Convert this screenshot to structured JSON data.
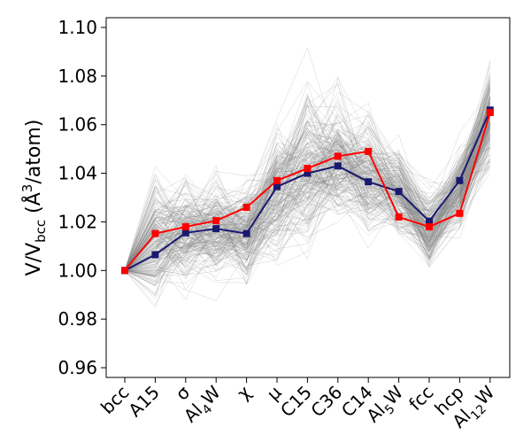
{
  "chart_data": {
    "type": "line",
    "title": "",
    "xlabel": "",
    "ylabel": {
      "base": "V/V",
      "sub": "bcc",
      "open": " (Å",
      "sup": "3",
      "close": "/atom)"
    },
    "categories": [
      {
        "base": "bcc",
        "sub": ""
      },
      {
        "base": "A15",
        "sub": ""
      },
      {
        "base": "σ",
        "sub": ""
      },
      {
        "base": "Al",
        "sub": "4",
        "tail": "W"
      },
      {
        "base": "χ",
        "sub": ""
      },
      {
        "base": "μ",
        "sub": ""
      },
      {
        "base": "C15",
        "sub": ""
      },
      {
        "base": "C36",
        "sub": ""
      },
      {
        "base": "C14",
        "sub": ""
      },
      {
        "base": "Al",
        "sub": "5",
        "tail": "W"
      },
      {
        "base": "fcc",
        "sub": ""
      },
      {
        "base": "hcp",
        "sub": ""
      },
      {
        "base": "Al",
        "sub": "12",
        "tail": "W"
      }
    ],
    "ylim": [
      0.956,
      1.104
    ],
    "yticks": [
      "0.96",
      "0.98",
      "1.00",
      "1.02",
      "1.04",
      "1.06",
      "1.08",
      "1.10"
    ],
    "series": [
      {
        "name": "navy",
        "color": "#191970",
        "marker": "square",
        "values": [
          1.0,
          1.0065,
          1.0155,
          1.0172,
          1.0152,
          1.0345,
          1.04,
          1.043,
          1.0365,
          1.0325,
          1.0203,
          1.037,
          1.066
        ]
      },
      {
        "name": "red",
        "color": "#ff0000",
        "marker": "square",
        "values": [
          1.0,
          1.0152,
          1.018,
          1.0205,
          1.026,
          1.037,
          1.042,
          1.047,
          1.049,
          1.022,
          1.018,
          1.0235,
          1.065
        ]
      }
    ],
    "background_ensemble": {
      "color": "#808080",
      "count": 220,
      "mean": [
        1.0,
        1.011,
        1.015,
        1.018,
        1.016,
        1.032,
        1.042,
        1.044,
        1.04,
        1.033,
        1.017,
        1.034,
        1.063
      ],
      "spread": [
        0.0,
        0.014,
        0.012,
        0.012,
        0.011,
        0.013,
        0.016,
        0.013,
        0.012,
        0.01,
        0.008,
        0.009,
        0.011
      ]
    }
  }
}
